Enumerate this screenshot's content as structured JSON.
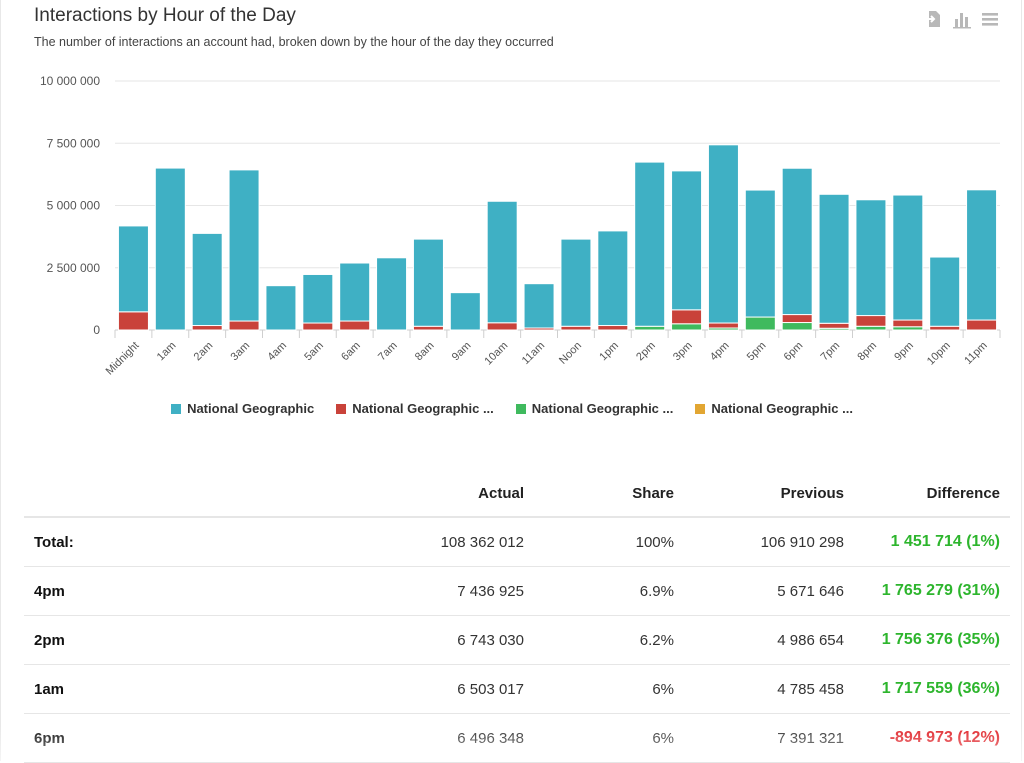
{
  "header": {
    "title": "Interactions by Hour of the Day",
    "subtitle": "The number of interactions an account had, broken down by the hour of the day they occurred",
    "icons": [
      "export-icon",
      "chart-type-icon",
      "menu-icon"
    ]
  },
  "chart_data": {
    "type": "bar",
    "stacked": true,
    "categories": [
      "Midnight",
      "1am",
      "2am",
      "3am",
      "4am",
      "5am",
      "6am",
      "7am",
      "8am",
      "9am",
      "10am",
      "11am",
      "Noon",
      "1pm",
      "2pm",
      "3pm",
      "4pm",
      "5pm",
      "6pm",
      "7pm",
      "8pm",
      "9pm",
      "10pm",
      "11pm"
    ],
    "ylim": [
      0,
      10000000
    ],
    "yticks": [
      0,
      2500000,
      5000000,
      7500000,
      10000000
    ],
    "ytick_labels": [
      "0",
      "2 500 000",
      "5 000 000",
      "7 500 000",
      "10 000 000"
    ],
    "legend_position": "bottom",
    "series": [
      {
        "name": "National Geographic",
        "color": "#3fb0c4",
        "values": [
          3450000,
          6503017,
          3700000,
          6070000,
          1780000,
          1950000,
          2330000,
          2900000,
          3500000,
          1500000,
          4880000,
          1780000,
          3500000,
          3800000,
          6593030,
          5580000,
          7156925,
          5100000,
          5876348,
          5180000,
          4650000,
          5020000,
          2780000,
          5230000
        ]
      },
      {
        "name": "National Geographic ...",
        "color": "#c9423a",
        "values": [
          730000,
          0,
          180000,
          360000,
          0,
          280000,
          360000,
          0,
          150000,
          0,
          290000,
          80000,
          150000,
          180000,
          0,
          560000,
          200000,
          0,
          320000,
          200000,
          430000,
          270000,
          150000,
          400000
        ]
      },
      {
        "name": "National Geographic ...",
        "color": "#3fba5e",
        "values": [
          0,
          0,
          0,
          0,
          0,
          0,
          0,
          0,
          0,
          0,
          0,
          0,
          0,
          0,
          150000,
          250000,
          80000,
          520000,
          300000,
          70000,
          150000,
          130000,
          0,
          0
        ]
      },
      {
        "name": "National Geographic ...",
        "color": "#e2a632",
        "values": [
          0,
          0,
          0,
          0,
          0,
          0,
          0,
          0,
          0,
          0,
          0,
          0,
          0,
          0,
          0,
          0,
          0,
          0,
          0,
          0,
          0,
          0,
          0,
          0
        ]
      }
    ]
  },
  "table": {
    "headers": [
      "",
      "Actual",
      "Share",
      "Previous",
      "Difference"
    ],
    "rows": [
      {
        "label": "Total:",
        "actual": "108 362 012",
        "share": "100%",
        "previous": "106 910 298",
        "difference": "1 451 714 (1%)",
        "positive": true
      },
      {
        "label": "4pm",
        "actual": "7 436 925",
        "share": "6.9%",
        "previous": "5 671 646",
        "difference": "1 765 279 (31%)",
        "positive": true
      },
      {
        "label": "2pm",
        "actual": "6 743 030",
        "share": "6.2%",
        "previous": "4 986 654",
        "difference": "1 756 376 (35%)",
        "positive": true
      },
      {
        "label": "1am",
        "actual": "6 503 017",
        "share": "6%",
        "previous": "4 785 458",
        "difference": "1 717 559 (36%)",
        "positive": true
      },
      {
        "label": "6pm",
        "actual": "6 496 348",
        "share": "6%",
        "previous": "7 391 321",
        "difference": "-894 973 (12%)",
        "positive": false
      }
    ]
  }
}
